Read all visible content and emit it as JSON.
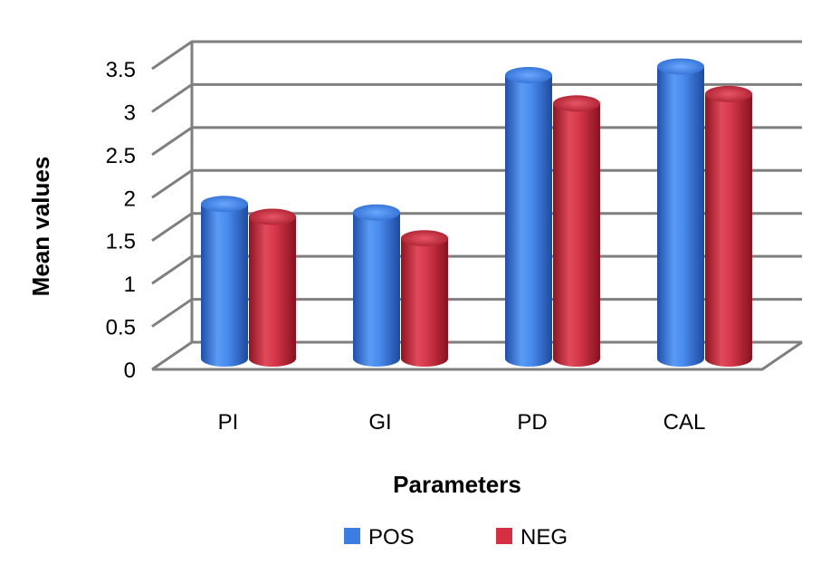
{
  "chart_data": {
    "type": "bar",
    "style": "3d-cylinder",
    "categories": [
      "PI",
      "GI",
      "PD",
      "CAL"
    ],
    "series": [
      {
        "name": "POS",
        "color": "#3b7de0",
        "values": [
          1.8,
          1.7,
          3.3,
          3.4
        ]
      },
      {
        "name": "NEG",
        "color": "#d42f43",
        "values": [
          1.65,
          1.4,
          2.97,
          3.08
        ]
      }
    ],
    "xlabel": "Parameters",
    "ylabel": "Mean values",
    "ylim": [
      0,
      3.5
    ],
    "yticks": [
      "0",
      "0.5",
      "1",
      "1.5",
      "2",
      "2.5",
      "3",
      "3.5"
    ],
    "grid": true,
    "legend_position": "bottom"
  }
}
